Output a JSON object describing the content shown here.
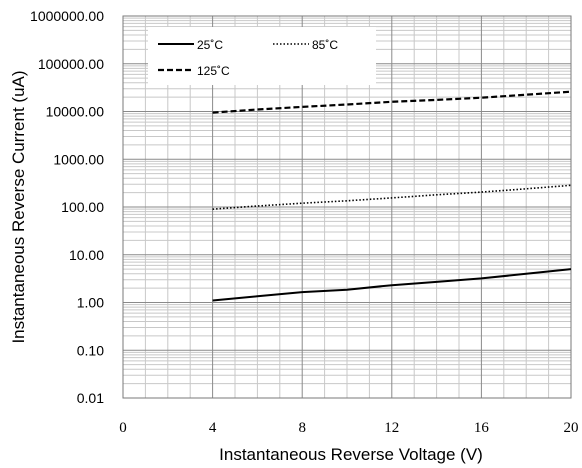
{
  "chart_data": {
    "type": "line",
    "title": "",
    "xlabel": "Instantaneous  Reverse Voltage (V)",
    "ylabel": "Instantaneous Reverse Current (uA)",
    "x_scale": "linear",
    "y_scale": "log",
    "xlim": [
      0,
      20
    ],
    "ylim": [
      0.01,
      1000000
    ],
    "x_ticks": [
      "0",
      "4",
      "8",
      "12",
      "16",
      "20"
    ],
    "y_ticks": [
      "1000000.00",
      "100000.00",
      "10000.00",
      "1000.00",
      "100.00",
      "10.00",
      "1.00",
      "0.10",
      "0.01"
    ],
    "grid": true,
    "legend_position": "top-left",
    "series": [
      {
        "name": "25˚C",
        "line_style": "solid",
        "color": "#000000",
        "x": [
          4,
          6,
          8,
          10,
          12,
          14,
          16,
          18,
          20
        ],
        "y": [
          1.1,
          1.35,
          1.65,
          1.85,
          2.3,
          2.7,
          3.2,
          4.0,
          5.0
        ]
      },
      {
        "name": "85˚C",
        "line_style": "dotted",
        "color": "#000000",
        "x": [
          4,
          6,
          8,
          10,
          12,
          14,
          16,
          18,
          20
        ],
        "y": [
          90,
          105,
          120,
          135,
          155,
          180,
          205,
          240,
          285
        ]
      },
      {
        "name": "125˚C",
        "line_style": "dashed",
        "color": "#000000",
        "x": [
          4,
          6,
          8,
          10,
          12,
          14,
          16,
          18,
          20
        ],
        "y": [
          9500,
          11000,
          12500,
          14000,
          16000,
          17500,
          19500,
          22500,
          26000
        ]
      }
    ]
  }
}
